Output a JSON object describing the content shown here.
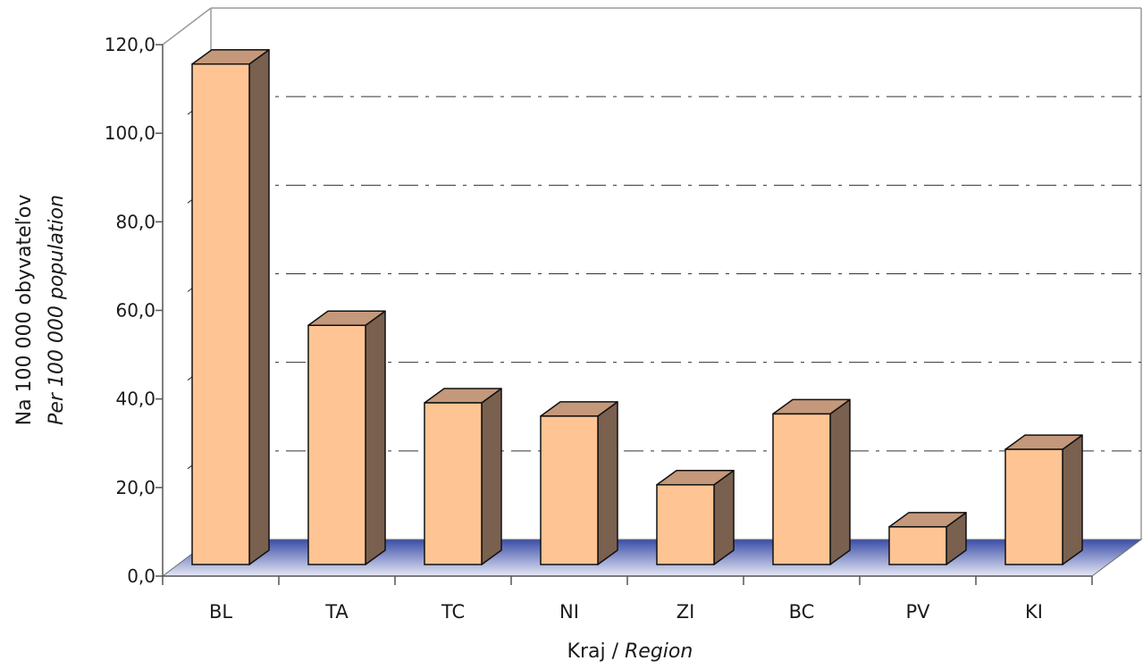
{
  "chart_data": {
    "type": "bar",
    "categories": [
      "BL",
      "TA",
      "TC",
      "NI",
      "ZI",
      "BC",
      "PV",
      "KI"
    ],
    "values": [
      113.0,
      54.0,
      36.5,
      33.5,
      18.0,
      34.0,
      8.5,
      26.0
    ],
    "ylim": [
      0,
      120
    ],
    "yticks": [
      "0,0",
      "20,0",
      "40,0",
      "60,0",
      "80,0",
      "100,0",
      "120,0"
    ],
    "ylabel": "Na 100 000 obyvateľov",
    "ylabel_en": "Per 100 000 population",
    "xlabel": "Kraj /",
    "xlabel_en": "Region",
    "grid": true,
    "legend": "none"
  },
  "colors": {
    "bar_front": "#ffc494",
    "bar_top": "#c4987a",
    "bar_side": "#7a604e",
    "floor_dark": "#3a4da8",
    "floor_light": "#e6e8f4"
  }
}
